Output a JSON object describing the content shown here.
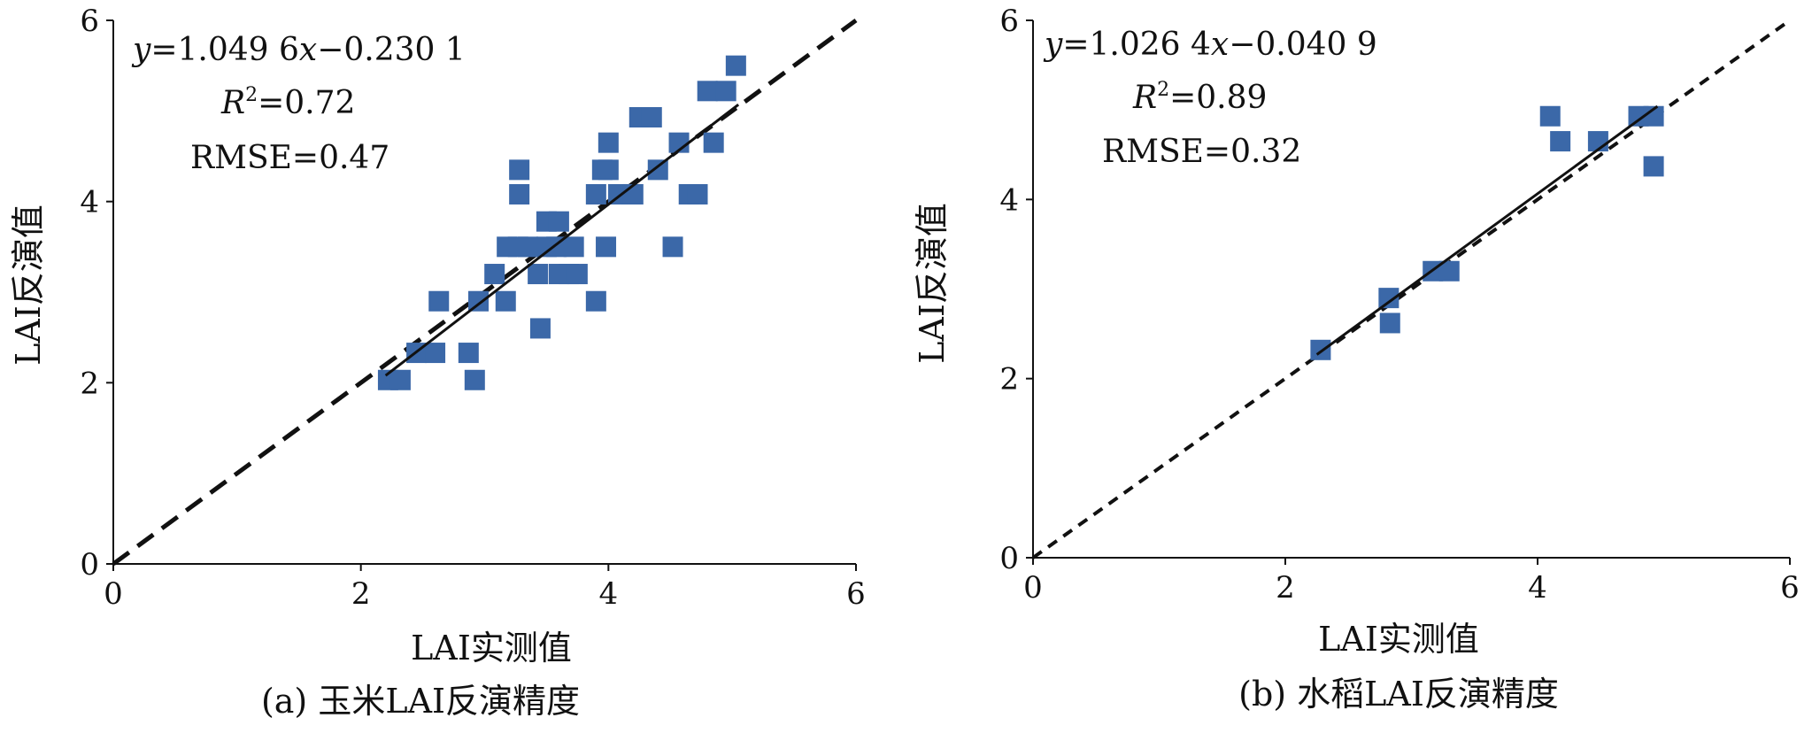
{
  "chart_data": [
    {
      "type": "scatter",
      "caption": "(a) 玉米LAI反演精度",
      "xlabel": "LAI实测值",
      "ylabel": "LAI反演值",
      "xlim": [
        0,
        6
      ],
      "ylim": [
        0,
        6
      ],
      "xticks": [
        "0",
        "2",
        "4",
        "6"
      ],
      "yticks": [
        "0",
        "2",
        "4",
        "6"
      ],
      "annotations": {
        "eq_prefix": "y",
        "eq_mid": "=1.049 6",
        "eq_var": "x",
        "eq_suffix": "−0.230 1",
        "r2_var": "R",
        "r2_sup": "2",
        "r2_value": "=0.72",
        "rmse": "RMSE=0.47"
      },
      "points": [
        [
          2.22,
          2.03
        ],
        [
          2.32,
          2.03
        ],
        [
          2.45,
          2.33
        ],
        [
          2.6,
          2.33
        ],
        [
          2.63,
          2.9
        ],
        [
          2.87,
          2.33
        ],
        [
          2.92,
          2.03
        ],
        [
          2.95,
          2.9
        ],
        [
          3.08,
          3.2
        ],
        [
          3.17,
          2.9
        ],
        [
          3.18,
          3.5
        ],
        [
          3.27,
          3.5
        ],
        [
          3.28,
          4.08
        ],
        [
          3.28,
          4.35
        ],
        [
          3.35,
          3.5
        ],
        [
          3.43,
          3.2
        ],
        [
          3.45,
          2.6
        ],
        [
          3.5,
          3.5
        ],
        [
          3.5,
          3.78
        ],
        [
          3.58,
          3.5
        ],
        [
          3.6,
          3.78
        ],
        [
          3.6,
          3.2
        ],
        [
          3.68,
          3.2
        ],
        [
          3.72,
          3.5
        ],
        [
          3.75,
          3.2
        ],
        [
          3.9,
          2.9
        ],
        [
          3.9,
          4.08
        ],
        [
          3.95,
          4.35
        ],
        [
          3.98,
          3.5
        ],
        [
          4.0,
          4.35
        ],
        [
          4.0,
          4.65
        ],
        [
          4.08,
          4.08
        ],
        [
          4.18,
          4.08
        ],
        [
          4.2,
          4.08
        ],
        [
          4.25,
          4.93
        ],
        [
          4.35,
          4.93
        ],
        [
          4.4,
          4.35
        ],
        [
          4.52,
          3.5
        ],
        [
          4.57,
          4.65
        ],
        [
          4.65,
          4.08
        ],
        [
          4.72,
          4.08
        ],
        [
          4.8,
          5.22
        ],
        [
          4.85,
          4.65
        ],
        [
          4.95,
          5.22
        ],
        [
          5.03,
          5.5
        ]
      ],
      "fit_line": {
        "slope": 1.0496,
        "intercept": -0.2301,
        "x_range": [
          2.2,
          5.05
        ],
        "style": "solid"
      },
      "reference_line": {
        "slope": 1,
        "intercept": 0,
        "x_range": [
          0,
          6
        ],
        "style": "dashed"
      },
      "marker_color": "#3b68a8"
    },
    {
      "type": "scatter",
      "caption": "(b) 水稻LAI反演精度",
      "xlabel": "LAI实测值",
      "ylabel": "LAI反演值",
      "xlim": [
        0,
        6
      ],
      "ylim": [
        0,
        6
      ],
      "xticks": [
        "0",
        "2",
        "4",
        "6"
      ],
      "yticks": [
        "0",
        "2",
        "4",
        "6"
      ],
      "annotations": {
        "eq_prefix": "y",
        "eq_mid": "=1.026 4",
        "eq_var": "x",
        "eq_suffix": "−0.040 9",
        "r2_var": "R",
        "r2_sup": "2",
        "r2_value": "=0.89",
        "rmse": "RMSE=0.32"
      },
      "points": [
        [
          2.28,
          2.32
        ],
        [
          2.82,
          2.9
        ],
        [
          2.83,
          2.62
        ],
        [
          3.17,
          3.2
        ],
        [
          3.3,
          3.2
        ],
        [
          4.1,
          4.93
        ],
        [
          4.18,
          4.65
        ],
        [
          4.48,
          4.65
        ],
        [
          4.8,
          4.93
        ],
        [
          4.92,
          4.93
        ],
        [
          4.92,
          4.37
        ]
      ],
      "fit_line": {
        "slope": 1.0264,
        "intercept": -0.0409,
        "x_range": [
          2.25,
          4.95
        ],
        "style": "solid"
      },
      "reference_line": {
        "slope": 1,
        "intercept": 0,
        "x_range": [
          0,
          6
        ],
        "style": "dashed"
      },
      "marker_color": "#3b68a8"
    }
  ]
}
